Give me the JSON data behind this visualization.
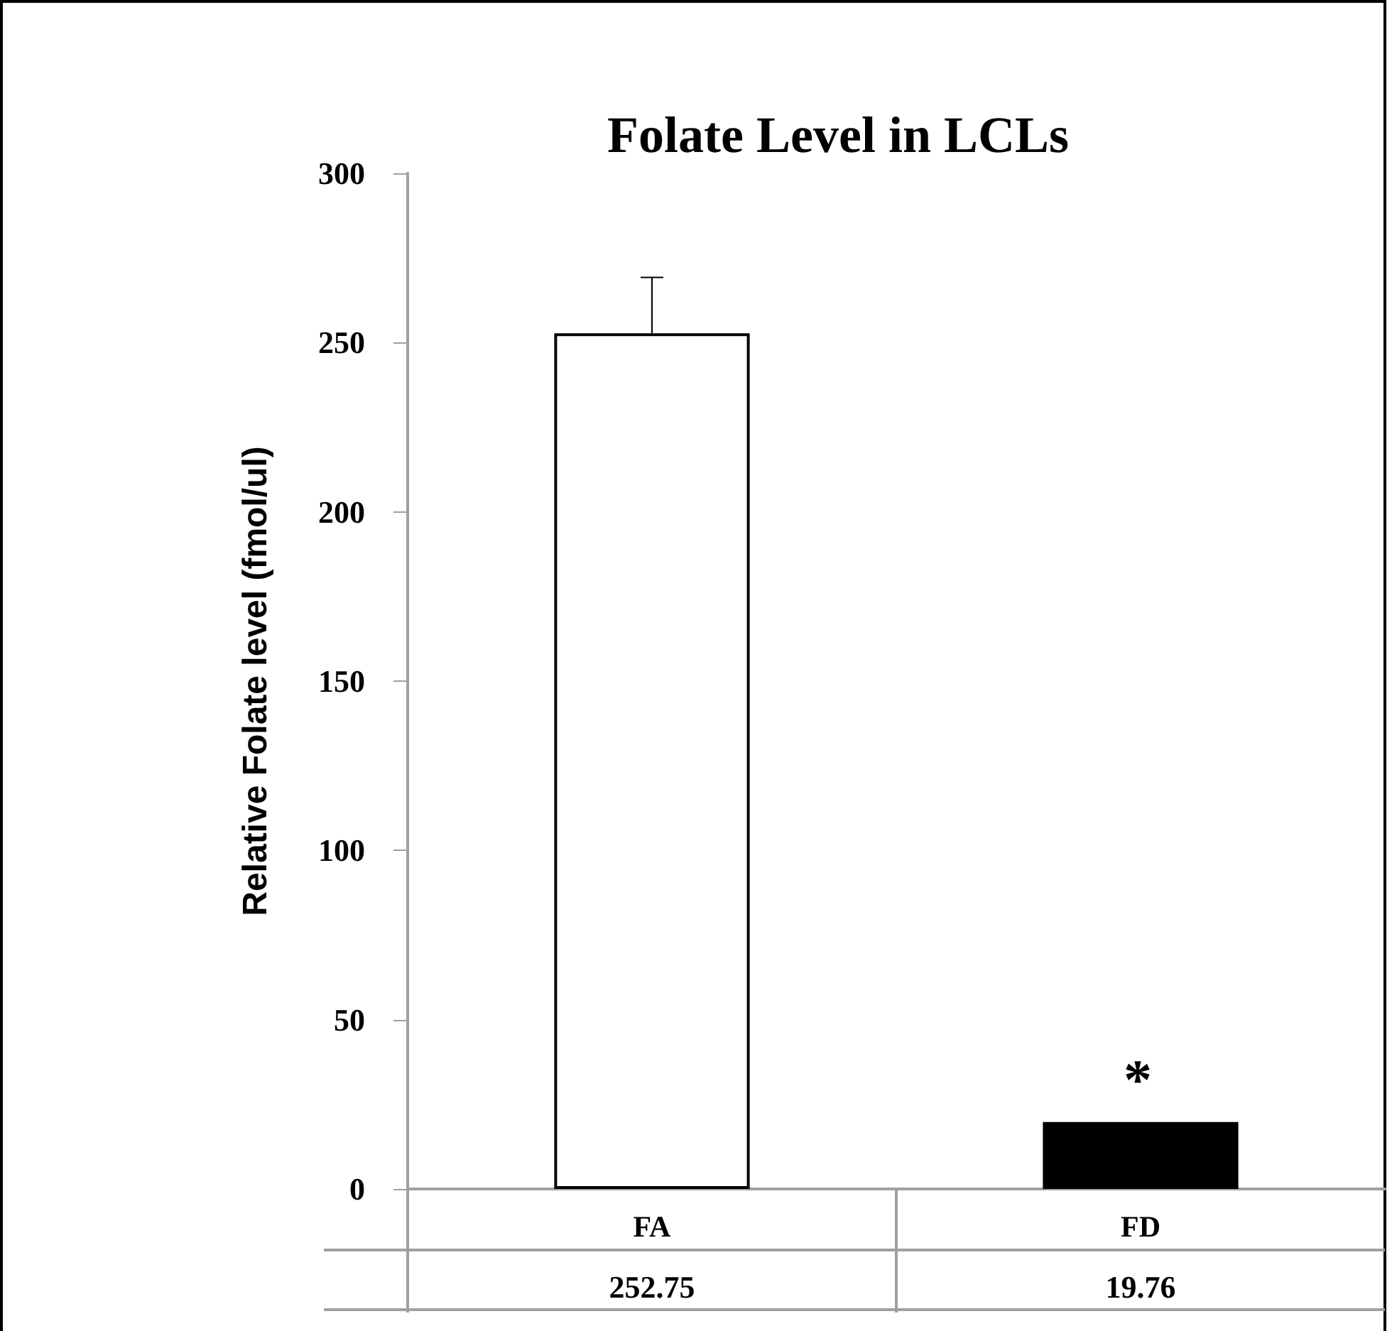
{
  "chart_data": {
    "type": "bar",
    "title": "Folate Level in LCLs",
    "ylabel": "Relative Folate level (fmol/ul)",
    "categories": [
      "FA",
      "FD"
    ],
    "series": [
      {
        "colors": [
          "#ffffff",
          "#000000"
        ],
        "values": [
          252.75,
          19.76
        ],
        "errors": [
          16.5,
          null
        ]
      }
    ],
    "data_labels": true,
    "annotations": [
      "*"
    ],
    "ylim": [
      0,
      300
    ],
    "yticks": [
      0,
      50,
      100,
      150,
      200,
      250,
      300
    ],
    "grid": false
  }
}
